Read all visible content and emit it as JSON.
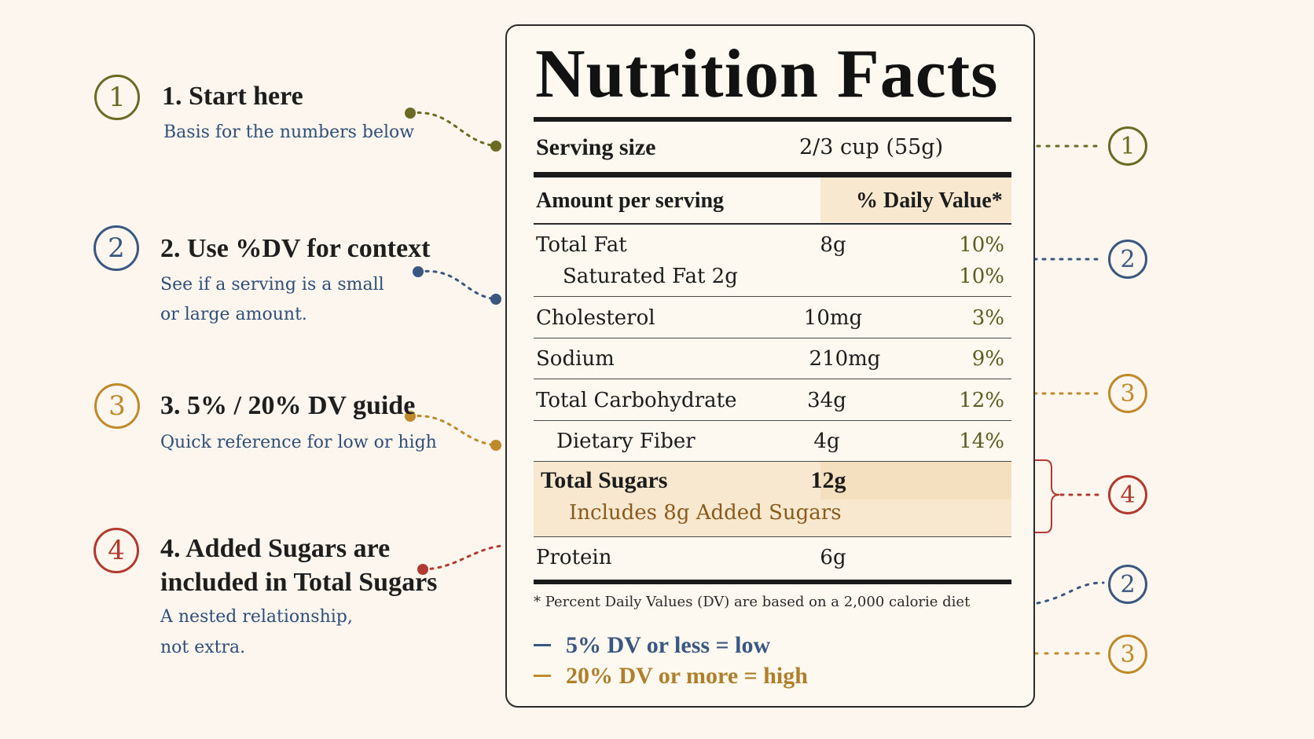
{
  "colors": {
    "olive": "#6b6a22",
    "navy": "#3a5780",
    "gold": "#c08a2a",
    "red": "#b23a2e",
    "highlight": "#f8e8cf",
    "background": "#fcf6ee"
  },
  "steps": [
    {
      "badge": "1",
      "title": "1. Start here",
      "desc": [
        "Basis for the numbers below"
      ],
      "color": "#6b6a22"
    },
    {
      "badge": "2",
      "title": "2. Use %DV for context",
      "desc": [
        "See if a serving is a small",
        "or large amount."
      ],
      "color": "#3a5780"
    },
    {
      "badge": "3",
      "title": "3. 5% / 20% DV guide",
      "desc": [
        "Quick reference for low or high"
      ],
      "color": "#c08a2a"
    },
    {
      "badge": "4",
      "title": [
        "4. Added Sugars are",
        "included in Total Sugars"
      ],
      "desc": [
        "A nested relationship,",
        "not extra."
      ],
      "color": "#b23a2e"
    }
  ],
  "label": {
    "title": "Nutrition Facts",
    "serving_label": "Serving size",
    "serving_value": "2/3 cup (55g)",
    "amount_header": "Amount per serving",
    "dv_header": "% Daily Value*",
    "rows": [
      {
        "name": "Total Fat",
        "amount": "8g",
        "dv": "10%"
      },
      {
        "name": "Saturated Fat 2g",
        "amount": "",
        "dv": "10%"
      },
      {
        "name": "Cholesterol",
        "amount": "10mg",
        "dv": "3%"
      },
      {
        "name": "Sodium",
        "amount": "210mg",
        "dv": "9%"
      },
      {
        "name": "Total Carbohydrate",
        "amount": "34g",
        "dv": "12%"
      },
      {
        "name": "Dietary Fiber",
        "amount": "4g",
        "dv": "14%"
      },
      {
        "name": "Total Sugars",
        "amount": "12g",
        "dv": ""
      },
      {
        "name": "Includes 8g  Added Sugars",
        "amount": "",
        "dv": ""
      },
      {
        "name": "Protein",
        "amount": "6g",
        "dv": ""
      }
    ],
    "footnote": "* Percent Daily Values (DV) are based on a 2,000 calorie diet",
    "legend": [
      {
        "text": "5% DV or less = low",
        "color": "#3a5780"
      },
      {
        "text": "20% DV or more = high",
        "color": "#c08a2a"
      }
    ]
  },
  "right_badges": [
    {
      "badge": "1",
      "color": "#6b6a22"
    },
    {
      "badge": "2",
      "color": "#3a5780"
    },
    {
      "badge": "3",
      "color": "#c08a2a"
    },
    {
      "badge": "4",
      "color": "#b23a2e"
    },
    {
      "badge": "2",
      "color": "#3a5780"
    },
    {
      "badge": "3",
      "color": "#c08a2a"
    }
  ]
}
